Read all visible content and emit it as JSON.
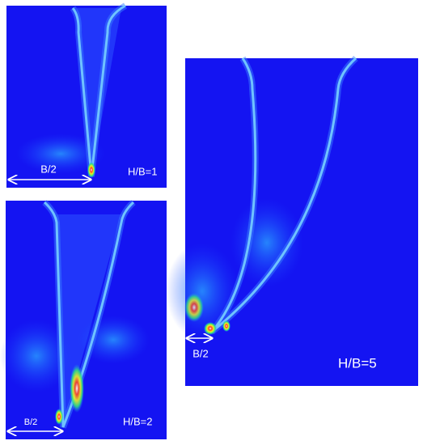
{
  "panels": [
    {
      "dimension": "B/2",
      "label": "H/B=1"
    },
    {
      "dimension": "B/2",
      "label": "H/B=2"
    },
    {
      "dimension": "B/2",
      "label": "H/B=5"
    }
  ]
}
